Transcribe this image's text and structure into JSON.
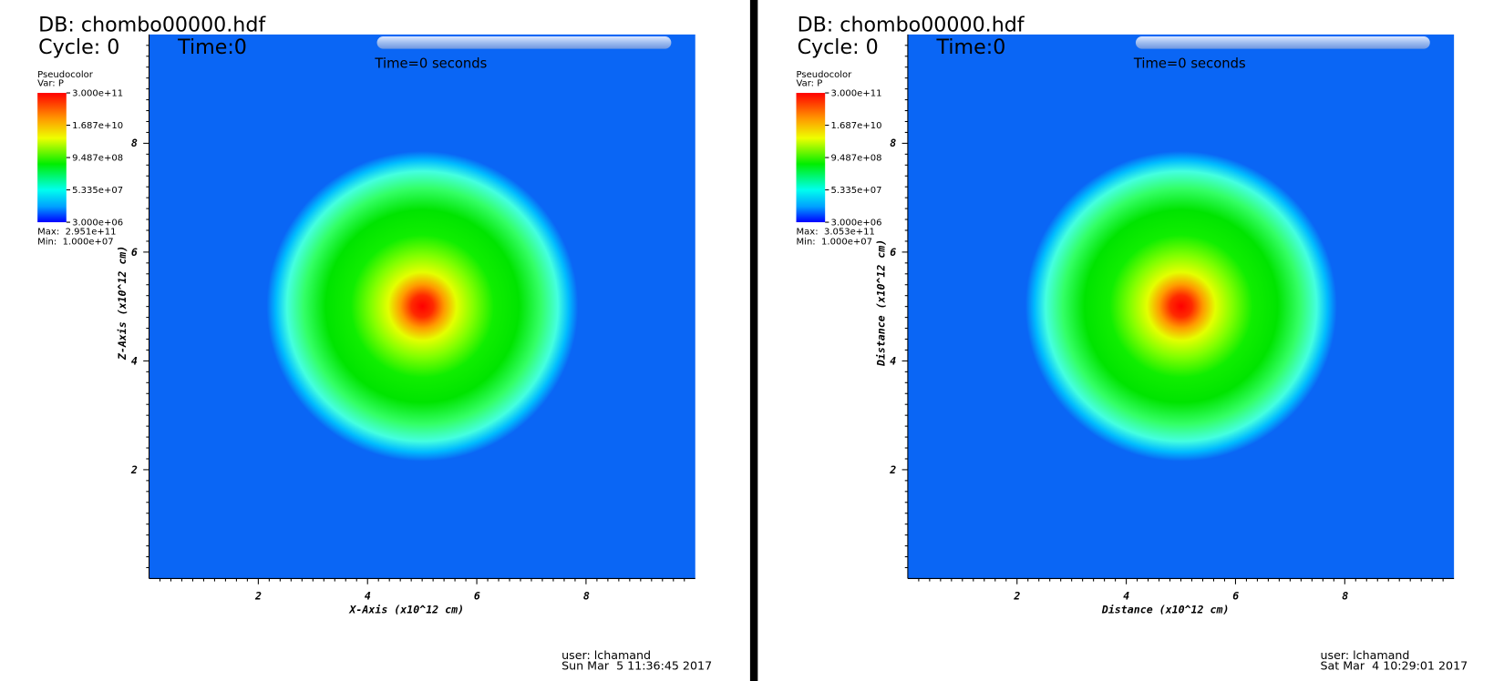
{
  "panels": [
    {
      "db": "DB: chombo00000.hdf",
      "cycle": "Cycle: 0",
      "time": "Time:0",
      "time_label": "Time=0 seconds",
      "legend": {
        "title": "Pseudocolor",
        "var": "Var: P",
        "ticks": [
          "3.000e+11",
          "1.687e+10",
          "9.487e+08",
          "5.335e+07",
          "3.000e+06"
        ],
        "max": "Max:  2.951e+11",
        "min": "Min:  1.000e+07"
      },
      "x_axis": {
        "label": "X-Axis (x10^12 cm)",
        "ticks": [
          "2",
          "4",
          "6",
          "8"
        ]
      },
      "y_axis": {
        "label": "Z-Axis (x10^12 cm)",
        "ticks": [
          "2",
          "4",
          "6",
          "8"
        ]
      },
      "user": "user: lchamand",
      "date": "Sun Mar  5 11:36:45 2017"
    },
    {
      "db": "DB: chombo00000.hdf",
      "cycle": "Cycle: 0",
      "time": "Time:0",
      "time_label": "Time=0 seconds",
      "legend": {
        "title": "Pseudocolor",
        "var": "Var: P",
        "ticks": [
          "3.000e+11",
          "1.687e+10",
          "9.487e+08",
          "5.335e+07",
          "3.000e+06"
        ],
        "max": "Max:  3.053e+11",
        "min": "Min:  1.000e+07"
      },
      "x_axis": {
        "label": "Distance (x10^12 cm)",
        "ticks": [
          "2",
          "4",
          "6",
          "8"
        ]
      },
      "y_axis": {
        "label": "Distance (x10^12 cm)",
        "ticks": [
          "2",
          "4",
          "6",
          "8"
        ]
      },
      "user": "user: lchamand",
      "date": "Sat Mar  4 10:29:01 2017"
    }
  ]
}
